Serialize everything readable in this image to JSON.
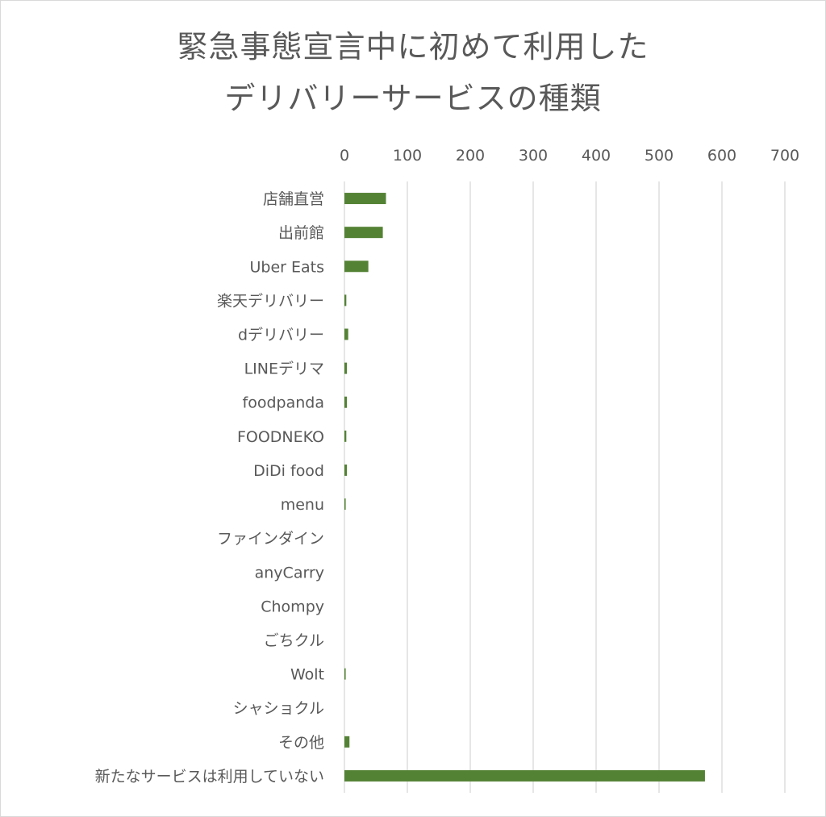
{
  "chart_data": {
    "type": "bar",
    "orientation": "horizontal",
    "title_lines": [
      "緊急事態宣言中に初めて利用した",
      "デリバリーサービスの種類"
    ],
    "categories": [
      "店舗直営",
      "出前館",
      "Uber Eats",
      "楽天デリバリー",
      "dデリバリー",
      "LINEデリマ",
      "foodpanda",
      "FOODNEKO",
      "DiDi food",
      "menu",
      "ファインダイン",
      "anyCarry",
      "Chompy",
      "ごちクル",
      "Wolt",
      "シャショクル",
      "その他",
      "新たなサービスは利用していない"
    ],
    "values": [
      66,
      61,
      38,
      3,
      6,
      4,
      4,
      3,
      4,
      2,
      0,
      0,
      0,
      0,
      2,
      0,
      8,
      573
    ],
    "xlim": [
      0,
      700
    ],
    "x_ticks": [
      0,
      100,
      200,
      300,
      400,
      500,
      600,
      700
    ],
    "x_tick_labels": [
      "0",
      "100",
      "200",
      "300",
      "400",
      "500",
      "600",
      "700"
    ],
    "x_axis_position": "top",
    "grid": true,
    "legend": "none",
    "bar_color": "#548235",
    "grid_color": "#d9d9d9",
    "text_color": "#595959"
  }
}
